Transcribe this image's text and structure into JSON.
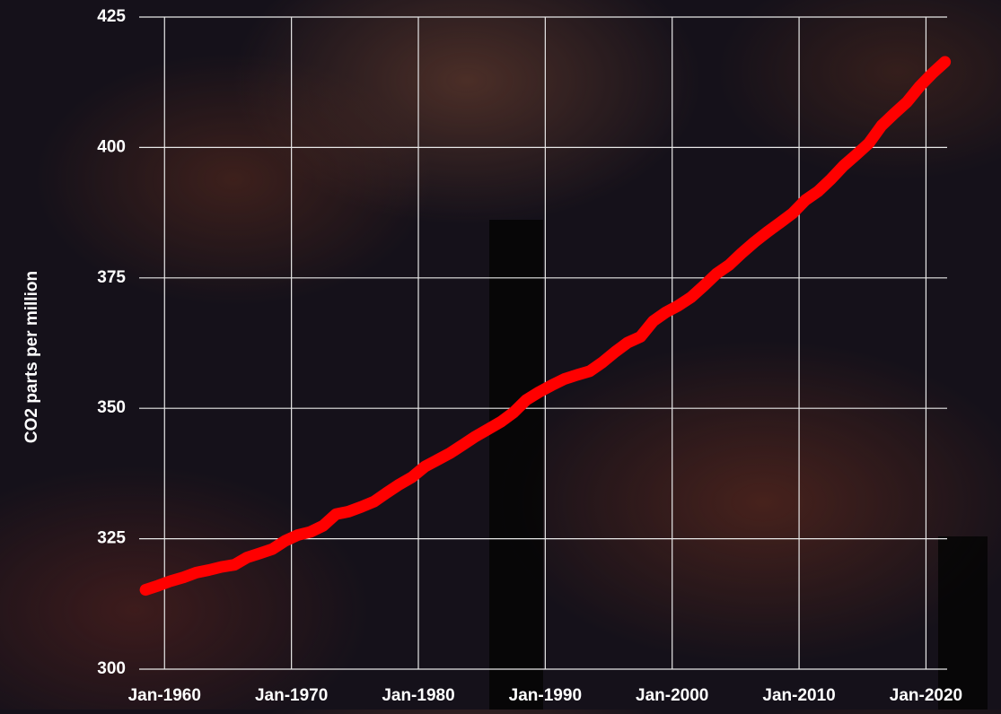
{
  "chart_data": {
    "type": "line",
    "y_label": "CO2 parts per million",
    "x": [
      "Jul-1958",
      "Jul-1959",
      "Jul-1960",
      "Jul-1961",
      "Jul-1962",
      "Jul-1963",
      "Jul-1964",
      "Jul-1965",
      "Jul-1966",
      "Jul-1967",
      "Jul-1968",
      "Jul-1969",
      "Jul-1970",
      "Jul-1971",
      "Jul-1972",
      "Jul-1973",
      "Jul-1974",
      "Jul-1975",
      "Jul-1976",
      "Jul-1977",
      "Jul-1978",
      "Jul-1979",
      "Jul-1980",
      "Jul-1981",
      "Jul-1982",
      "Jul-1983",
      "Jul-1984",
      "Jul-1985",
      "Jul-1986",
      "Jul-1987",
      "Jul-1988",
      "Jul-1989",
      "Jul-1990",
      "Jul-1991",
      "Jul-1992",
      "Jul-1993",
      "Jul-1994",
      "Jul-1995",
      "Jul-1996",
      "Jul-1997",
      "Jul-1998",
      "Jul-1999",
      "Jul-2000",
      "Jul-2001",
      "Jul-2002",
      "Jul-2003",
      "Jul-2004",
      "Jul-2005",
      "Jul-2006",
      "Jul-2007",
      "Jul-2008",
      "Jul-2009",
      "Jul-2010",
      "Jul-2011",
      "Jul-2012",
      "Jul-2013",
      "Jul-2014",
      "Jul-2015",
      "Jul-2016",
      "Jul-2017",
      "Jul-2018",
      "Jul-2019",
      "Jul-2020",
      "Jul-2021"
    ],
    "values": [
      315.2,
      316.0,
      316.9,
      317.6,
      318.5,
      319.0,
      319.6,
      320.0,
      321.4,
      322.2,
      323.0,
      324.6,
      325.7,
      326.3,
      327.5,
      329.7,
      330.2,
      331.1,
      332.1,
      333.8,
      335.4,
      336.8,
      338.8,
      340.1,
      341.4,
      343.0,
      344.6,
      346.0,
      347.4,
      349.2,
      351.6,
      353.1,
      354.4,
      355.6,
      356.4,
      357.1,
      358.8,
      360.8,
      362.6,
      363.7,
      366.7,
      368.4,
      369.7,
      371.3,
      373.5,
      375.8,
      377.5,
      379.8,
      381.9,
      383.8,
      385.6,
      387.4,
      389.9,
      391.6,
      393.9,
      396.5,
      398.6,
      400.8,
      404.2,
      406.5,
      408.7,
      411.7,
      414.2,
      416.4
    ],
    "color": "#ff0000",
    "xlim": [
      "Jan-1958",
      "Sep-2021"
    ],
    "xticks": [
      "Jan-1960",
      "Jan-1970",
      "Jan-1980",
      "Jan-1990",
      "Jan-2000",
      "Jan-2010",
      "Jan-2020"
    ],
    "ylim": [
      300,
      425
    ],
    "yticks": [
      300,
      325,
      350,
      375,
      400,
      425
    ],
    "grid": true
  }
}
